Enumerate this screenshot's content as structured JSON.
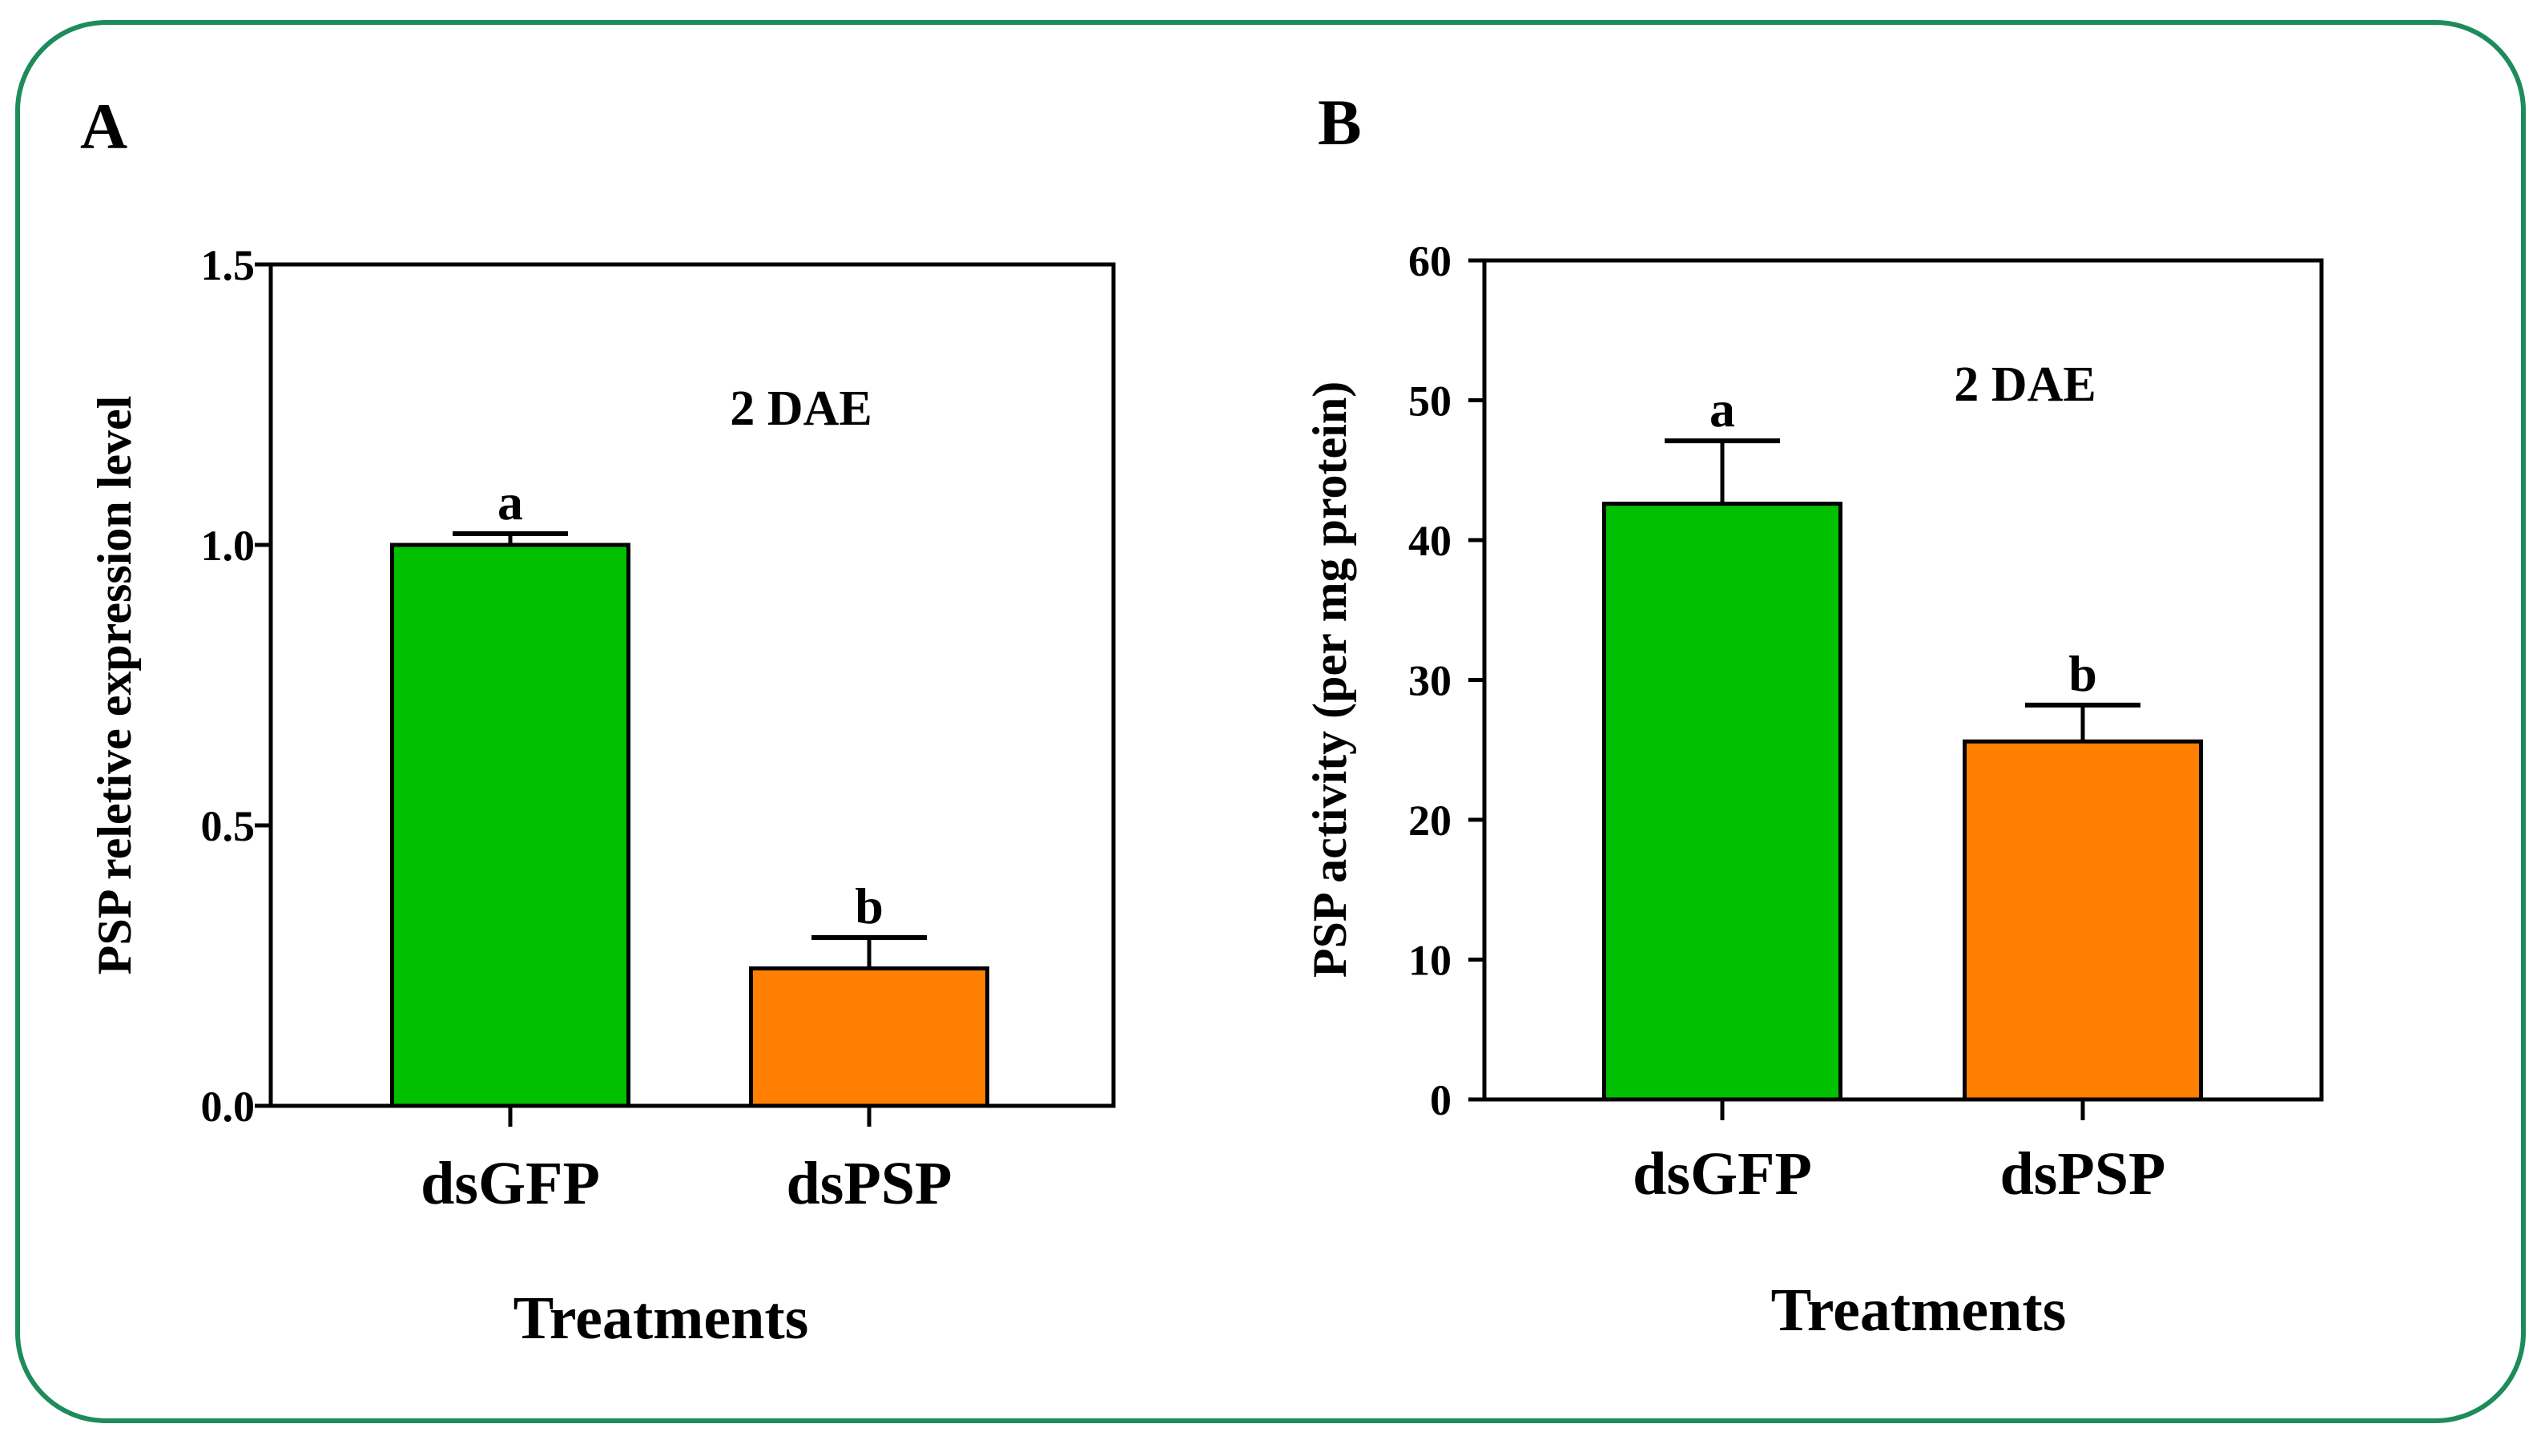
{
  "figure": {
    "frame_color": "#1e8c5a",
    "colors": {
      "dsGFP": "#00c000",
      "dsPSP": "#ff8000"
    }
  },
  "chart_data": [
    {
      "type": "bar",
      "panel_label": "A",
      "annotation": "2 DAE",
      "categories": [
        "dsGFP",
        "dsPSP"
      ],
      "values": [
        1.0,
        0.245
      ],
      "errors": [
        0.02,
        0.055
      ],
      "significance": [
        "a",
        "b"
      ],
      "xlabel": "Treatments",
      "ylabel": "PSP reletive expression level",
      "ylim": [
        0,
        1.5
      ],
      "yticks": [
        0,
        0.5,
        1.0,
        1.5
      ],
      "ytick_labels": [
        "0.0",
        "0.5",
        "1.0",
        "1.5"
      ]
    },
    {
      "type": "bar",
      "panel_label": "B",
      "annotation": "2 DAE",
      "categories": [
        "dsGFP",
        "dsPSP"
      ],
      "values": [
        42.6,
        25.6
      ],
      "errors": [
        4.5,
        2.6
      ],
      "significance": [
        "a",
        "b"
      ],
      "xlabel": "Treatments",
      "ylabel": "PSP activity (per mg protein)",
      "ylim": [
        0,
        60
      ],
      "yticks": [
        0,
        10,
        20,
        30,
        40,
        50,
        60
      ],
      "ytick_labels": [
        "0",
        "10",
        "20",
        "30",
        "40",
        "50",
        "60"
      ]
    }
  ]
}
